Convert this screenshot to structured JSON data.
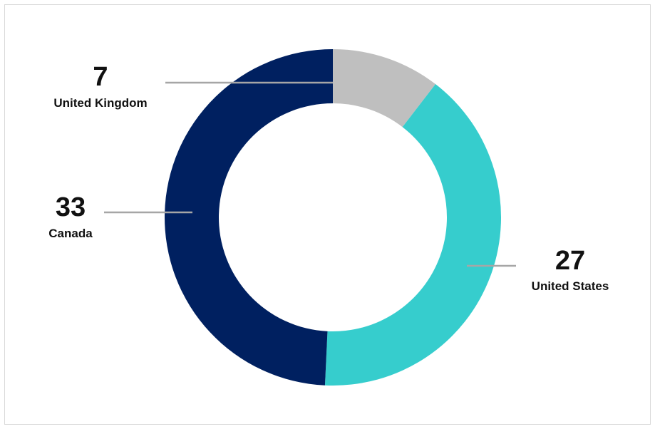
{
  "chart_data": {
    "type": "pie",
    "style": "donut",
    "categories": [
      "United Kingdom",
      "United States",
      "Canada"
    ],
    "values": [
      7,
      27,
      33
    ],
    "colors": [
      "#bfbfbf",
      "#36cdcd",
      "#002060"
    ],
    "title": "",
    "legend": "none",
    "labels": [
      {
        "value": "7",
        "name": "United Kingdom"
      },
      {
        "value": "27",
        "name": "United States"
      },
      {
        "value": "33",
        "name": "Canada"
      }
    ]
  }
}
